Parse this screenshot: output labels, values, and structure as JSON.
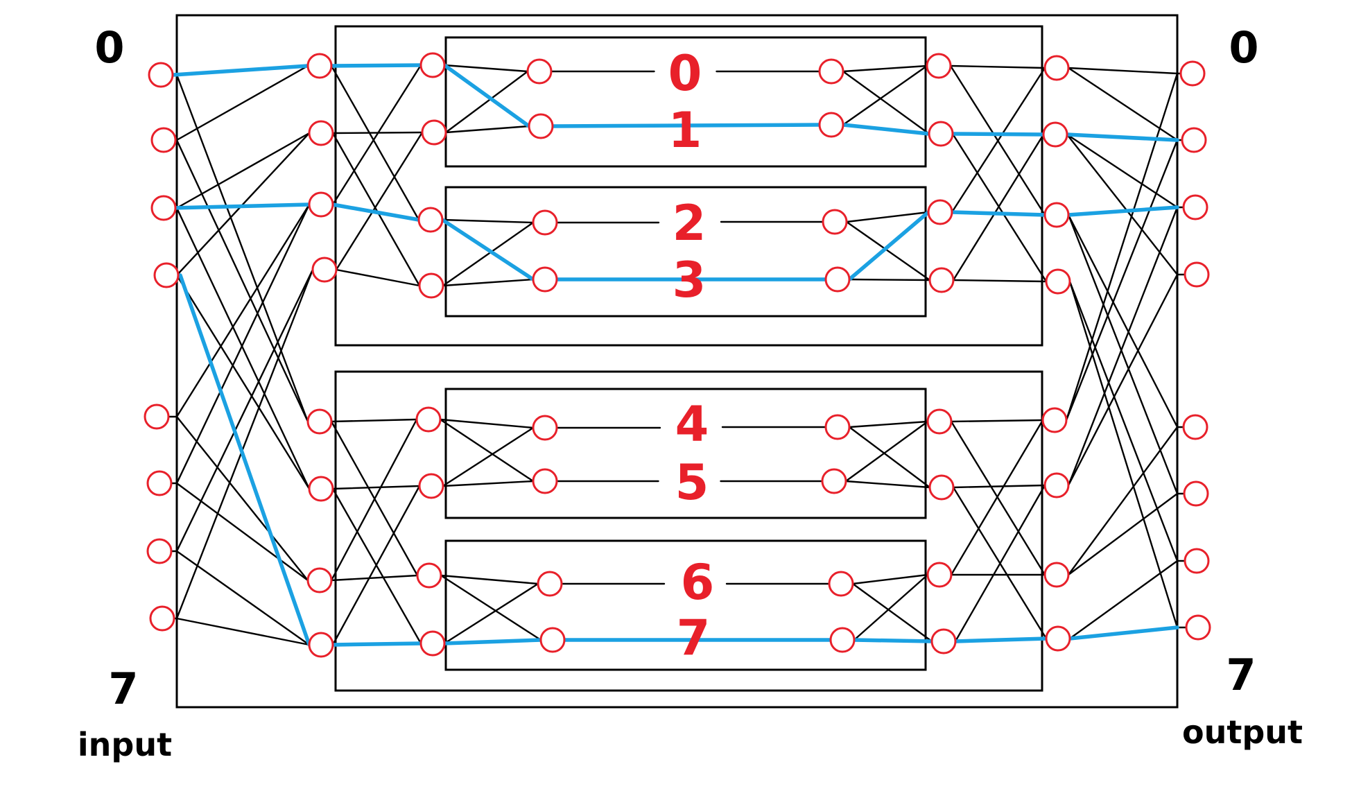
{
  "labels": {
    "input_top": "0",
    "input_bottom": "7",
    "input_caption": "input",
    "output_top": "0",
    "output_bottom": "7",
    "output_caption": "output"
  },
  "switch_labels": [
    "0",
    "1",
    "2",
    "3",
    "4",
    "5",
    "6",
    "7"
  ],
  "colors": {
    "node_stroke": "#e8202a",
    "wire": "#000000",
    "highlight_path": "#1ba1e2",
    "number_label": "#e8202a"
  }
}
